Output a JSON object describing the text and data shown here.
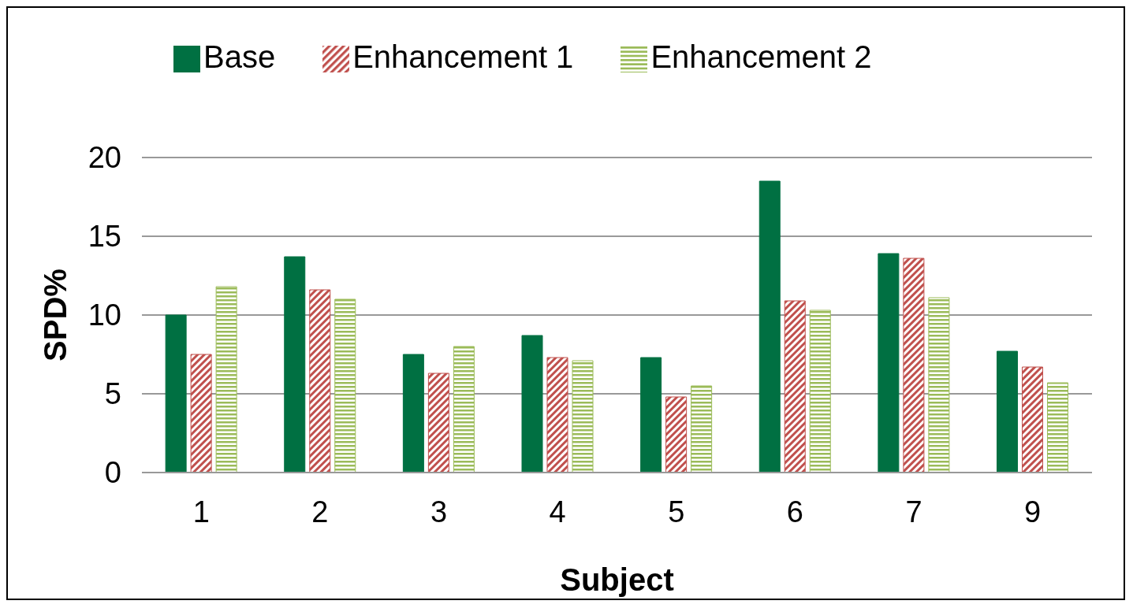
{
  "chart_data": {
    "type": "bar",
    "xlabel": "Subject",
    "ylabel": "SPD%",
    "categories": [
      "1",
      "2",
      "3",
      "4",
      "5",
      "6",
      "7",
      "9"
    ],
    "series": [
      {
        "name": "Base",
        "color": "#007042",
        "values": [
          10.0,
          13.7,
          7.5,
          8.7,
          7.3,
          18.5,
          13.9,
          7.7
        ]
      },
      {
        "name": "Enhancement 1",
        "color": "#c0504d",
        "values": [
          7.5,
          11.6,
          6.3,
          7.3,
          4.8,
          10.9,
          13.6,
          6.7
        ]
      },
      {
        "name": "Enhancement 2",
        "color": "#9bbb59",
        "values": [
          11.8,
          11.0,
          8.0,
          7.1,
          5.5,
          10.3,
          11.1,
          5.7
        ]
      }
    ],
    "ylim": [
      0,
      20
    ],
    "yticks": [
      0,
      5,
      10,
      15,
      20
    ],
    "grid": "y",
    "legend": "top left"
  }
}
